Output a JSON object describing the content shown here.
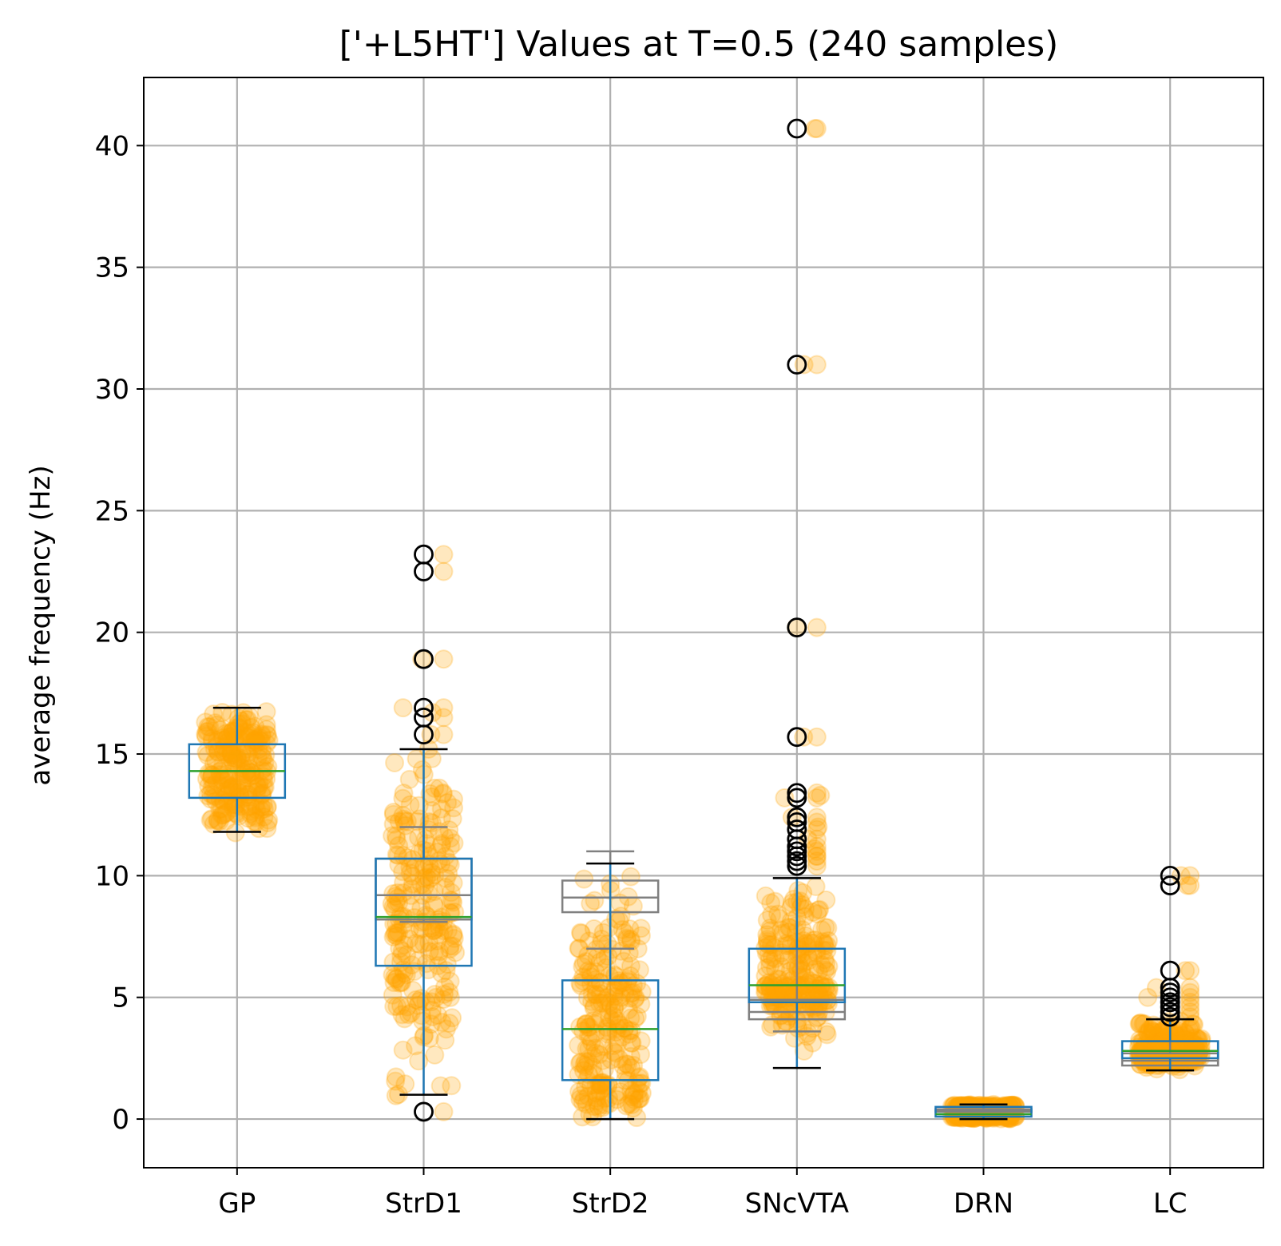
{
  "chart_data": {
    "type": "box",
    "title": "['+L5HT'] Values at T=0.5 (240 samples)",
    "xlabel": "",
    "ylabel": "average frequency (Hz)",
    "ylim": [
      -2,
      42.8
    ],
    "yticks": [
      0,
      5,
      10,
      15,
      20,
      25,
      30,
      35,
      40
    ],
    "grid": true,
    "categories": [
      "GP",
      "StrD1",
      "StrD2",
      "SNcVTA",
      "DRN",
      "LC"
    ],
    "samples_per_category": 240,
    "scatter_color": "#ffa500",
    "box_color": "#1f77b4",
    "median_color": "#2ca02c",
    "reference_box_color": "#808080",
    "boxes": [
      {
        "name": "GP",
        "whisker_low": 11.8,
        "q1": 13.2,
        "median": 14.3,
        "q3": 15.4,
        "whisker_high": 16.9,
        "fliers": [],
        "data_min": 11.7,
        "data_max": 17.0
      },
      {
        "name": "StrD1",
        "whisker_low": 1.0,
        "q1": 6.3,
        "median": 8.3,
        "q3": 10.7,
        "whisker_high": 15.2,
        "fliers": [
          0.3,
          15.8,
          16.5,
          16.9,
          18.9,
          22.5,
          23.2
        ],
        "data_min": 0.3,
        "data_max": 23.2,
        "extra_points": [
          18.9,
          16.9,
          16.7,
          15.8,
          15.2,
          14.8,
          13.6,
          13.4,
          13.0
        ]
      },
      {
        "name": "StrD2",
        "whisker_low": 0.0,
        "q1": 1.6,
        "median": 3.7,
        "q3": 5.7,
        "whisker_high": 10.5,
        "fliers": [],
        "data_min": 0.0,
        "data_max": 10.6
      },
      {
        "name": "SNcVTA",
        "whisker_low": 2.1,
        "q1": 4.8,
        "median": 5.5,
        "q3": 7.0,
        "whisker_high": 9.9,
        "fliers": [
          10.4,
          10.6,
          10.8,
          11.0,
          11.2,
          11.5,
          11.9,
          12.2,
          12.4,
          13.2,
          13.4,
          15.7,
          20.2,
          31.0,
          40.7
        ],
        "data_min": 2.1,
        "data_max": 40.7,
        "extra_points": [
          40.7,
          31.0,
          20.2,
          15.7,
          13.3,
          13.2,
          12.4,
          12.0,
          11.5,
          11.1,
          10.8
        ]
      },
      {
        "name": "DRN",
        "whisker_low": 0.0,
        "q1": 0.1,
        "median": 0.2,
        "q3": 0.5,
        "whisker_high": 0.6,
        "fliers": [],
        "data_min": 0.0,
        "data_max": 0.6
      },
      {
        "name": "LC",
        "whisker_low": 2.0,
        "q1": 2.5,
        "median": 2.8,
        "q3": 3.2,
        "whisker_high": 4.1,
        "fliers": [
          4.2,
          4.4,
          4.6,
          4.8,
          5.0,
          5.2,
          5.4,
          6.1,
          9.6,
          10.0
        ],
        "data_min": 2.0,
        "data_max": 10.0,
        "extra_points": [
          10.0,
          9.6,
          6.1,
          5.4,
          5.0
        ]
      }
    ],
    "reference_boxes": [
      {
        "name": "StrD1",
        "whisker_low": 8.1,
        "q1": 8.2,
        "median": 9.2,
        "q3": 10.7,
        "whisker_high": 12.0
      },
      {
        "name": "StrD2",
        "whisker_low": 7.0,
        "q1": 8.5,
        "median": 9.1,
        "q3": 9.8,
        "whisker_high": 11.0
      },
      {
        "name": "SNcVTA",
        "whisker_low": 3.6,
        "q1": 4.1,
        "median": 4.4,
        "q3": 4.9,
        "whisker_high": 9.9
      },
      {
        "name": "DRN",
        "whisker_low": 0.3,
        "q1": 0.3,
        "median": 0.35,
        "q3": 0.4,
        "whisker_high": 0.5
      },
      {
        "name": "LC",
        "whisker_low": 2.0,
        "q1": 2.2,
        "median": 2.4,
        "q3": 2.7,
        "whisker_high": 4.1
      }
    ]
  }
}
